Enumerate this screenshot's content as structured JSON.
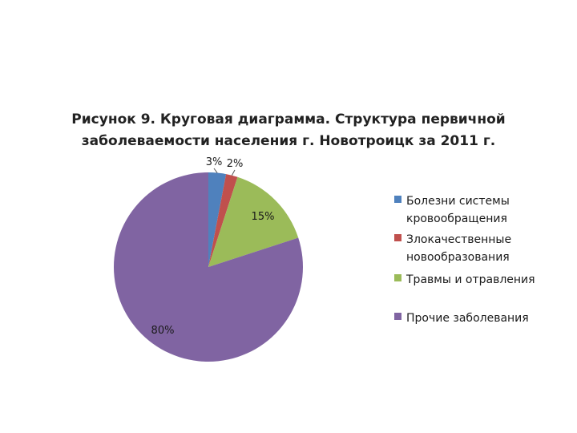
{
  "chart_data": {
    "type": "pie",
    "title_lines": [
      "Рисунок 9. Круговая диаграмма. Структура первичной",
      "заболеваемости населения г. Новотроицк за 2011 г."
    ],
    "series": [
      {
        "name": "Болезни системы кровообращения",
        "value": 3,
        "label": "3%",
        "color": "#4f81bd"
      },
      {
        "name": "Злокачественные новообразования",
        "value": 2,
        "label": "2%",
        "color": "#c0504d"
      },
      {
        "name": "Травмы и отравления",
        "value": 15,
        "label": "15%",
        "color": "#9bbb59"
      },
      {
        "name": "Прочие заболевания",
        "value": 80,
        "label": "80%",
        "color": "#8064a2"
      }
    ],
    "legend": {
      "position": "right",
      "entries": [
        {
          "lines": [
            "Болезни системы",
            "кровообращения"
          ],
          "color": "#4f81bd"
        },
        {
          "lines": [
            "Злокачественные",
            "новообразования"
          ],
          "color": "#c0504d"
        },
        {
          "lines": [
            "Травмы и отравления"
          ],
          "color": "#9bbb59"
        },
        {
          "lines": [
            "Прочие заболевания"
          ],
          "color": "#8064a2"
        }
      ]
    }
  }
}
